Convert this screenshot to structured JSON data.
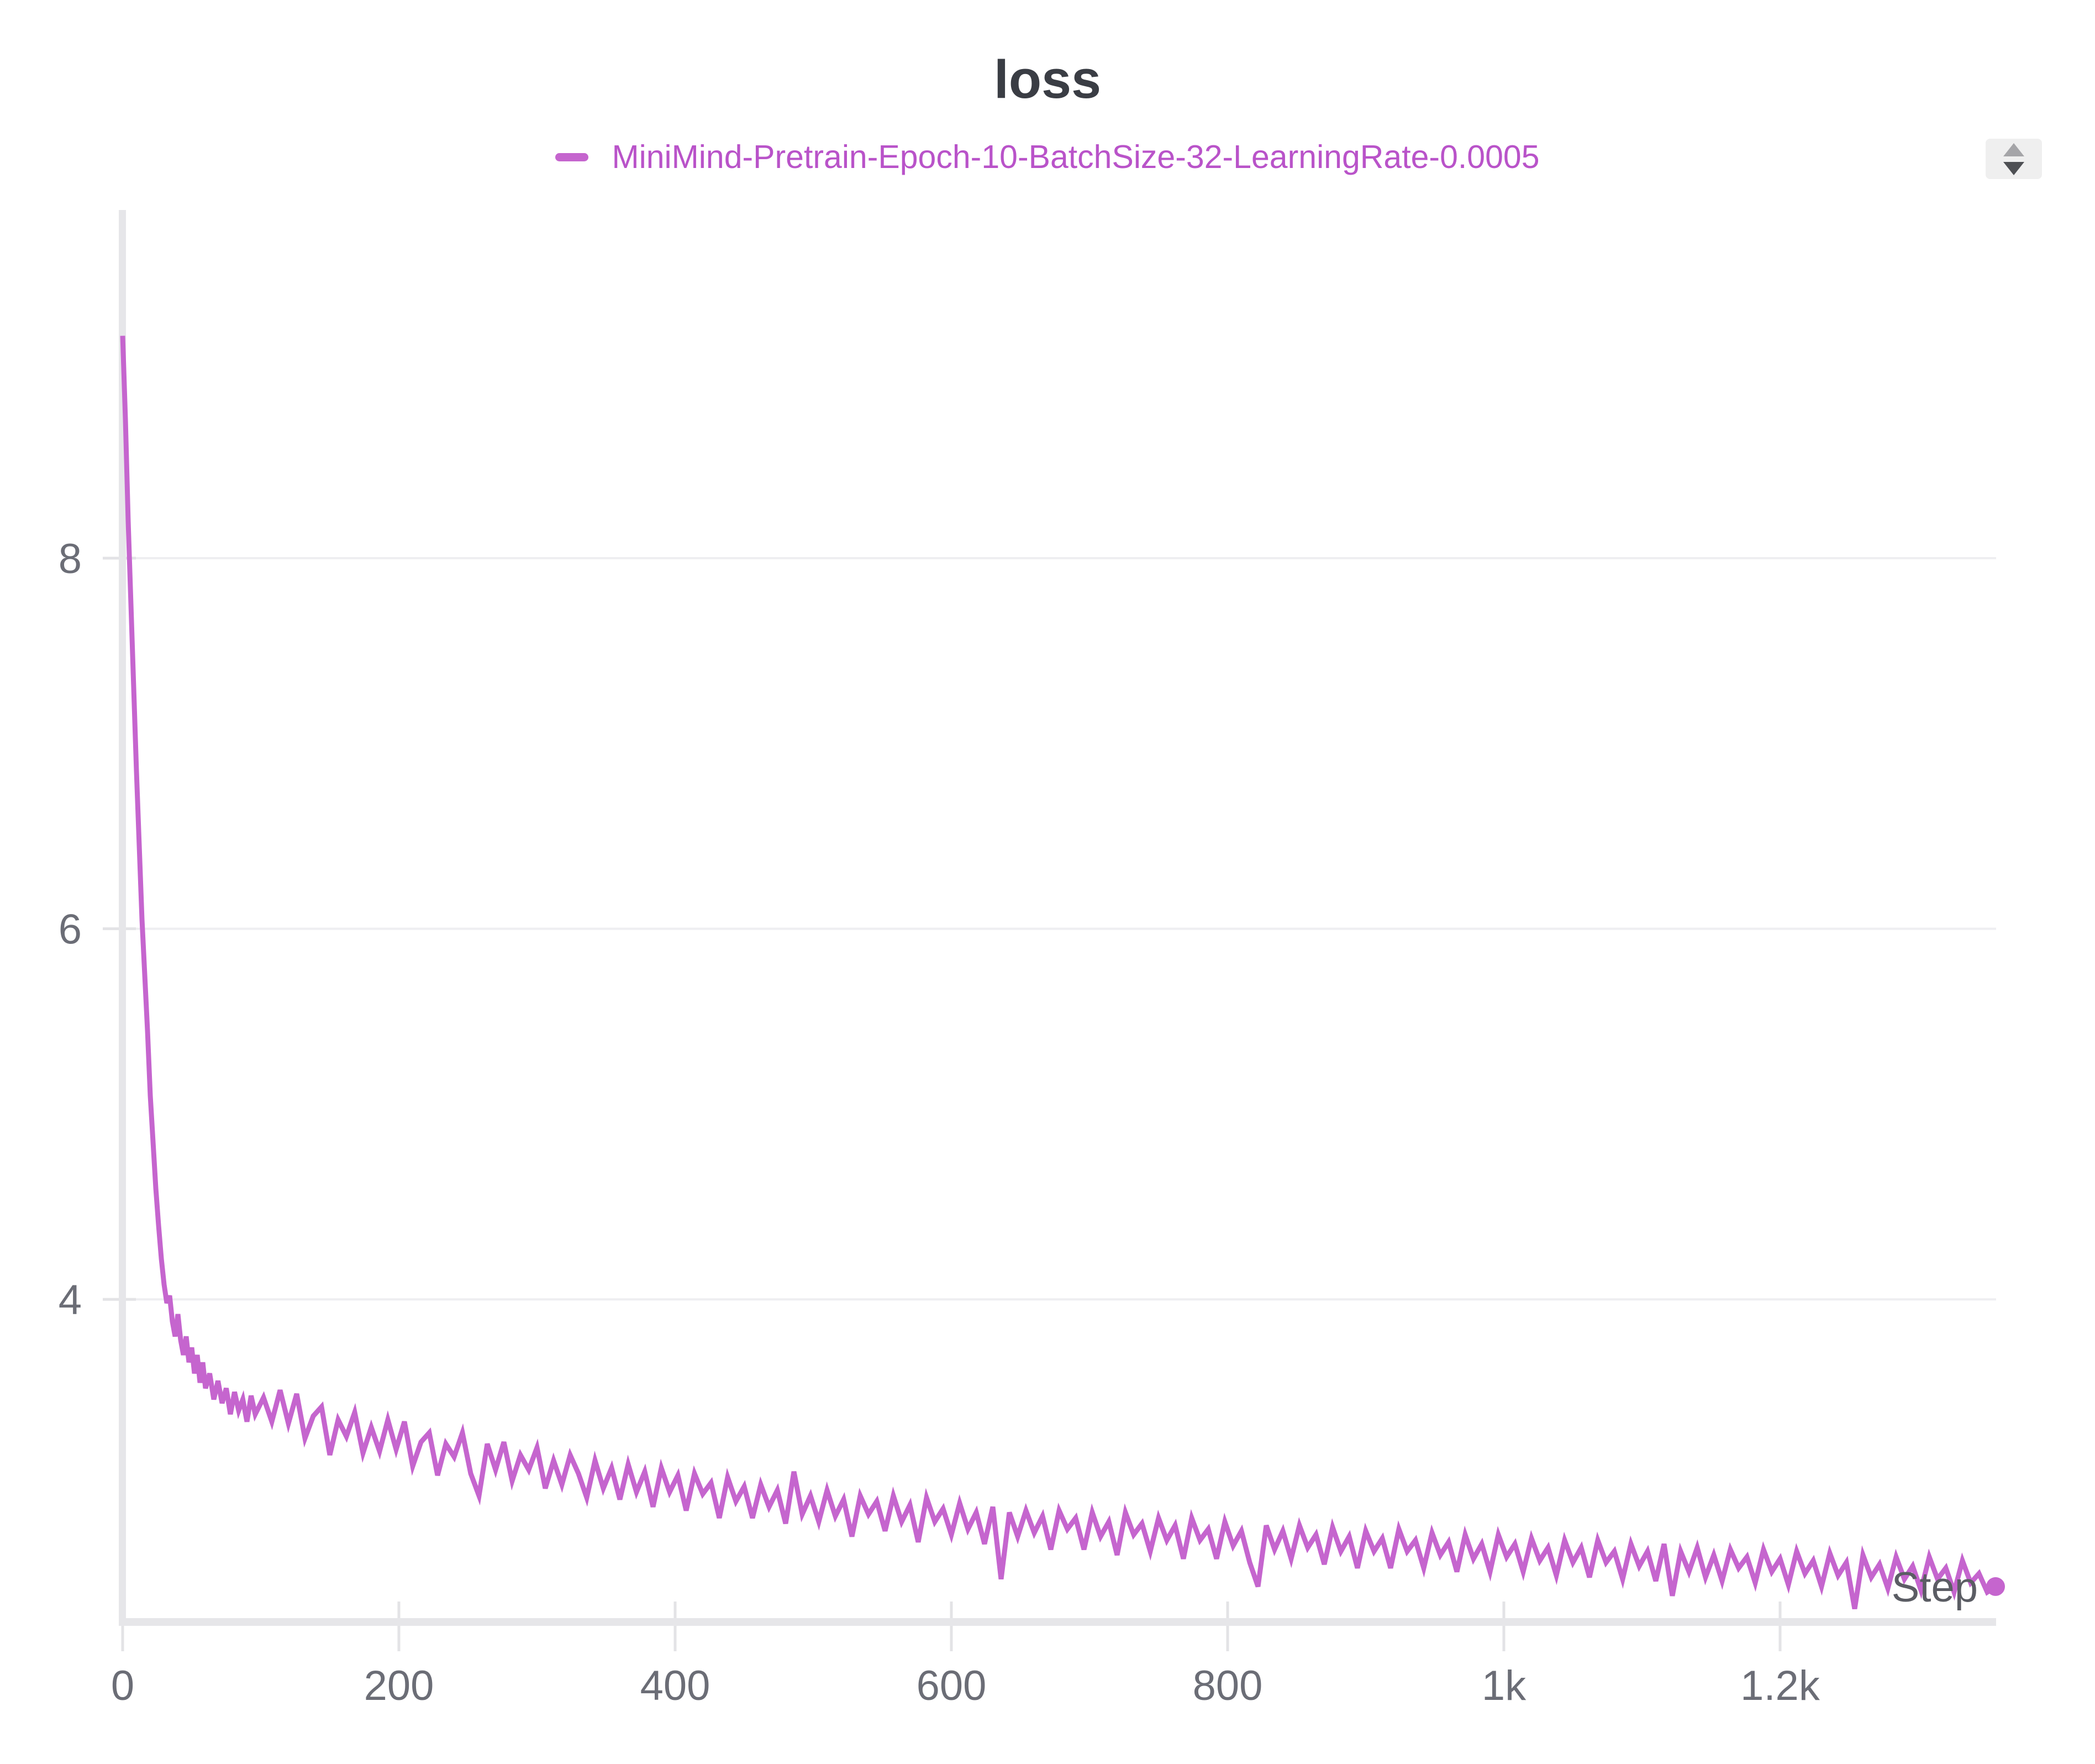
{
  "header": {
    "title": "loss"
  },
  "legend": {
    "items": [
      {
        "label": "MiniMind-Pretrain-Epoch-10-BatchSize-32-LearningRate-0.0005",
        "color": "#C565CE",
        "text_color": "#B953C9"
      }
    ]
  },
  "controls": {
    "sort_control": {
      "icon": "up-down-triangles"
    }
  },
  "colors": {
    "accent-purple": "#C565CE",
    "legend-text": "#B953C9",
    "title-text": "#3A3D44",
    "tick-label": "#6B6D76",
    "axis-label": "#5B5D64",
    "axis-line": "#E6E6E9",
    "tick-mark": "#E3E3E6",
    "gridline": "#EEEEF1",
    "sorter-bg": "#EFEFEF",
    "sorter-up": "#A5A5A8",
    "sorter-down": "#4E5054",
    "background": "#FFFFFF"
  },
  "chart_data": {
    "type": "line",
    "title": "loss",
    "xlabel": "Step",
    "ylabel": "",
    "xlim": [
      0,
      1360
    ],
    "ylim": [
      2.2,
      9.9
    ],
    "grid": "horizontal-only",
    "legend_position": "top-center",
    "x_ticks": [
      {
        "value": 0,
        "label": "0"
      },
      {
        "value": 200,
        "label": "200"
      },
      {
        "value": 400,
        "label": "400"
      },
      {
        "value": 600,
        "label": "600"
      },
      {
        "value": 800,
        "label": "800"
      },
      {
        "value": 1000,
        "label": "1k"
      },
      {
        "value": 1200,
        "label": "1.2k"
      }
    ],
    "y_ticks": [
      {
        "value": 4,
        "label": "4"
      },
      {
        "value": 6,
        "label": "6"
      },
      {
        "value": 8,
        "label": "8"
      }
    ],
    "series": [
      {
        "name": "MiniMind-Pretrain-Epoch-10-BatchSize-32-LearningRate-0.0005",
        "color": "#C565CE",
        "end_marker": "dot",
        "points": [
          [
            0,
            9.2
          ],
          [
            2,
            8.75
          ],
          [
            4,
            8.2
          ],
          [
            6,
            7.75
          ],
          [
            8,
            7.3
          ],
          [
            10,
            6.85
          ],
          [
            12,
            6.45
          ],
          [
            14,
            6.05
          ],
          [
            16,
            5.75
          ],
          [
            18,
            5.45
          ],
          [
            20,
            5.1
          ],
          [
            22,
            4.85
          ],
          [
            24,
            4.6
          ],
          [
            26,
            4.4
          ],
          [
            28,
            4.22
          ],
          [
            30,
            4.08
          ],
          [
            32,
            3.98
          ],
          [
            34,
            4.02
          ],
          [
            36,
            3.88
          ],
          [
            38,
            3.8
          ],
          [
            40,
            3.92
          ],
          [
            42,
            3.78
          ],
          [
            44,
            3.7
          ],
          [
            46,
            3.8
          ],
          [
            48,
            3.66
          ],
          [
            50,
            3.74
          ],
          [
            52,
            3.6
          ],
          [
            54,
            3.7
          ],
          [
            56,
            3.55
          ],
          [
            58,
            3.66
          ],
          [
            60,
            3.52
          ],
          [
            63,
            3.6
          ],
          [
            66,
            3.46
          ],
          [
            69,
            3.56
          ],
          [
            72,
            3.44
          ],
          [
            75,
            3.52
          ],
          [
            78,
            3.38
          ],
          [
            81,
            3.5
          ],
          [
            84,
            3.4
          ],
          [
            87,
            3.46
          ],
          [
            90,
            3.34
          ],
          [
            93,
            3.48
          ],
          [
            96,
            3.38
          ],
          [
            102,
            3.47
          ],
          [
            108,
            3.34
          ],
          [
            114,
            3.51
          ],
          [
            120,
            3.33
          ],
          [
            126,
            3.49
          ],
          [
            132,
            3.25
          ],
          [
            138,
            3.37
          ],
          [
            144,
            3.42
          ],
          [
            150,
            3.16
          ],
          [
            156,
            3.35
          ],
          [
            162,
            3.26
          ],
          [
            168,
            3.39
          ],
          [
            174,
            3.17
          ],
          [
            180,
            3.31
          ],
          [
            186,
            3.18
          ],
          [
            192,
            3.35
          ],
          [
            198,
            3.19
          ],
          [
            204,
            3.34
          ],
          [
            210,
            3.1
          ],
          [
            216,
            3.23
          ],
          [
            222,
            3.28
          ],
          [
            228,
            3.05
          ],
          [
            234,
            3.22
          ],
          [
            240,
            3.15
          ],
          [
            246,
            3.28
          ],
          [
            252,
            3.06
          ],
          [
            258,
            2.94
          ],
          [
            264,
            3.22
          ],
          [
            270,
            3.08
          ],
          [
            276,
            3.23
          ],
          [
            282,
            3.02
          ],
          [
            288,
            3.16
          ],
          [
            294,
            3.08
          ],
          [
            300,
            3.2
          ],
          [
            306,
            2.98
          ],
          [
            312,
            3.13
          ],
          [
            318,
            3.0
          ],
          [
            324,
            3.16
          ],
          [
            330,
            3.06
          ],
          [
            336,
            2.93
          ],
          [
            342,
            3.13
          ],
          [
            348,
            2.98
          ],
          [
            354,
            3.09
          ],
          [
            360,
            2.92
          ],
          [
            366,
            3.11
          ],
          [
            372,
            2.96
          ],
          [
            378,
            3.07
          ],
          [
            384,
            2.88
          ],
          [
            390,
            3.09
          ],
          [
            396,
            2.96
          ],
          [
            402,
            3.05
          ],
          [
            408,
            2.86
          ],
          [
            414,
            3.06
          ],
          [
            420,
            2.95
          ],
          [
            426,
            3.01
          ],
          [
            432,
            2.82
          ],
          [
            438,
            3.04
          ],
          [
            444,
            2.91
          ],
          [
            450,
            2.99
          ],
          [
            456,
            2.82
          ],
          [
            462,
            3.0
          ],
          [
            468,
            2.88
          ],
          [
            474,
            2.97
          ],
          [
            480,
            2.79
          ],
          [
            486,
            3.07
          ],
          [
            492,
            2.84
          ],
          [
            498,
            2.94
          ],
          [
            504,
            2.8
          ],
          [
            510,
            2.97
          ],
          [
            516,
            2.83
          ],
          [
            522,
            2.92
          ],
          [
            528,
            2.72
          ],
          [
            534,
            2.94
          ],
          [
            540,
            2.84
          ],
          [
            546,
            2.91
          ],
          [
            552,
            2.75
          ],
          [
            558,
            2.94
          ],
          [
            564,
            2.8
          ],
          [
            570,
            2.89
          ],
          [
            576,
            2.69
          ],
          [
            582,
            2.93
          ],
          [
            588,
            2.8
          ],
          [
            594,
            2.87
          ],
          [
            600,
            2.73
          ],
          [
            606,
            2.9
          ],
          [
            612,
            2.76
          ],
          [
            618,
            2.85
          ],
          [
            624,
            2.68
          ],
          [
            630,
            2.88
          ],
          [
            636,
            2.49
          ],
          [
            642,
            2.85
          ],
          [
            648,
            2.72
          ],
          [
            654,
            2.86
          ],
          [
            660,
            2.74
          ],
          [
            666,
            2.83
          ],
          [
            672,
            2.65
          ],
          [
            678,
            2.86
          ],
          [
            684,
            2.76
          ],
          [
            690,
            2.82
          ],
          [
            696,
            2.65
          ],
          [
            702,
            2.85
          ],
          [
            708,
            2.72
          ],
          [
            714,
            2.8
          ],
          [
            720,
            2.62
          ],
          [
            726,
            2.85
          ],
          [
            732,
            2.73
          ],
          [
            738,
            2.79
          ],
          [
            744,
            2.64
          ],
          [
            750,
            2.82
          ],
          [
            756,
            2.7
          ],
          [
            762,
            2.78
          ],
          [
            768,
            2.6
          ],
          [
            774,
            2.82
          ],
          [
            780,
            2.7
          ],
          [
            786,
            2.76
          ],
          [
            792,
            2.6
          ],
          [
            798,
            2.8
          ],
          [
            804,
            2.67
          ],
          [
            810,
            2.75
          ],
          [
            816,
            2.58
          ],
          [
            822,
            2.45
          ],
          [
            828,
            2.78
          ],
          [
            834,
            2.65
          ],
          [
            840,
            2.75
          ],
          [
            846,
            2.6
          ],
          [
            852,
            2.78
          ],
          [
            858,
            2.66
          ],
          [
            864,
            2.73
          ],
          [
            870,
            2.57
          ],
          [
            876,
            2.77
          ],
          [
            882,
            2.64
          ],
          [
            888,
            2.72
          ],
          [
            894,
            2.55
          ],
          [
            900,
            2.75
          ],
          [
            906,
            2.64
          ],
          [
            912,
            2.71
          ],
          [
            918,
            2.55
          ],
          [
            924,
            2.76
          ],
          [
            930,
            2.64
          ],
          [
            936,
            2.7
          ],
          [
            942,
            2.55
          ],
          [
            948,
            2.74
          ],
          [
            954,
            2.62
          ],
          [
            960,
            2.69
          ],
          [
            966,
            2.53
          ],
          [
            972,
            2.73
          ],
          [
            978,
            2.6
          ],
          [
            984,
            2.68
          ],
          [
            990,
            2.53
          ],
          [
            996,
            2.73
          ],
          [
            1002,
            2.61
          ],
          [
            1008,
            2.68
          ],
          [
            1014,
            2.53
          ],
          [
            1020,
            2.71
          ],
          [
            1026,
            2.59
          ],
          [
            1032,
            2.66
          ],
          [
            1038,
            2.51
          ],
          [
            1044,
            2.7
          ],
          [
            1050,
            2.58
          ],
          [
            1056,
            2.66
          ],
          [
            1062,
            2.5
          ],
          [
            1068,
            2.7
          ],
          [
            1074,
            2.58
          ],
          [
            1080,
            2.64
          ],
          [
            1086,
            2.49
          ],
          [
            1092,
            2.68
          ],
          [
            1098,
            2.56
          ],
          [
            1104,
            2.64
          ],
          [
            1110,
            2.48
          ],
          [
            1116,
            2.68
          ],
          [
            1122,
            2.4
          ],
          [
            1128,
            2.64
          ],
          [
            1134,
            2.53
          ],
          [
            1140,
            2.66
          ],
          [
            1146,
            2.5
          ],
          [
            1152,
            2.62
          ],
          [
            1158,
            2.48
          ],
          [
            1164,
            2.65
          ],
          [
            1170,
            2.55
          ],
          [
            1176,
            2.61
          ],
          [
            1182,
            2.47
          ],
          [
            1188,
            2.65
          ],
          [
            1194,
            2.53
          ],
          [
            1200,
            2.6
          ],
          [
            1206,
            2.46
          ],
          [
            1212,
            2.64
          ],
          [
            1218,
            2.52
          ],
          [
            1224,
            2.59
          ],
          [
            1230,
            2.45
          ],
          [
            1236,
            2.63
          ],
          [
            1242,
            2.51
          ],
          [
            1248,
            2.58
          ],
          [
            1254,
            2.33
          ],
          [
            1260,
            2.62
          ],
          [
            1266,
            2.5
          ],
          [
            1272,
            2.57
          ],
          [
            1278,
            2.44
          ],
          [
            1284,
            2.61
          ],
          [
            1290,
            2.49
          ],
          [
            1296,
            2.56
          ],
          [
            1302,
            2.43
          ],
          [
            1308,
            2.61
          ],
          [
            1314,
            2.49
          ],
          [
            1320,
            2.55
          ],
          [
            1326,
            2.42
          ],
          [
            1332,
            2.59
          ],
          [
            1338,
            2.47
          ],
          [
            1344,
            2.52
          ],
          [
            1350,
            2.42
          ],
          [
            1356,
            2.45
          ]
        ]
      }
    ]
  }
}
